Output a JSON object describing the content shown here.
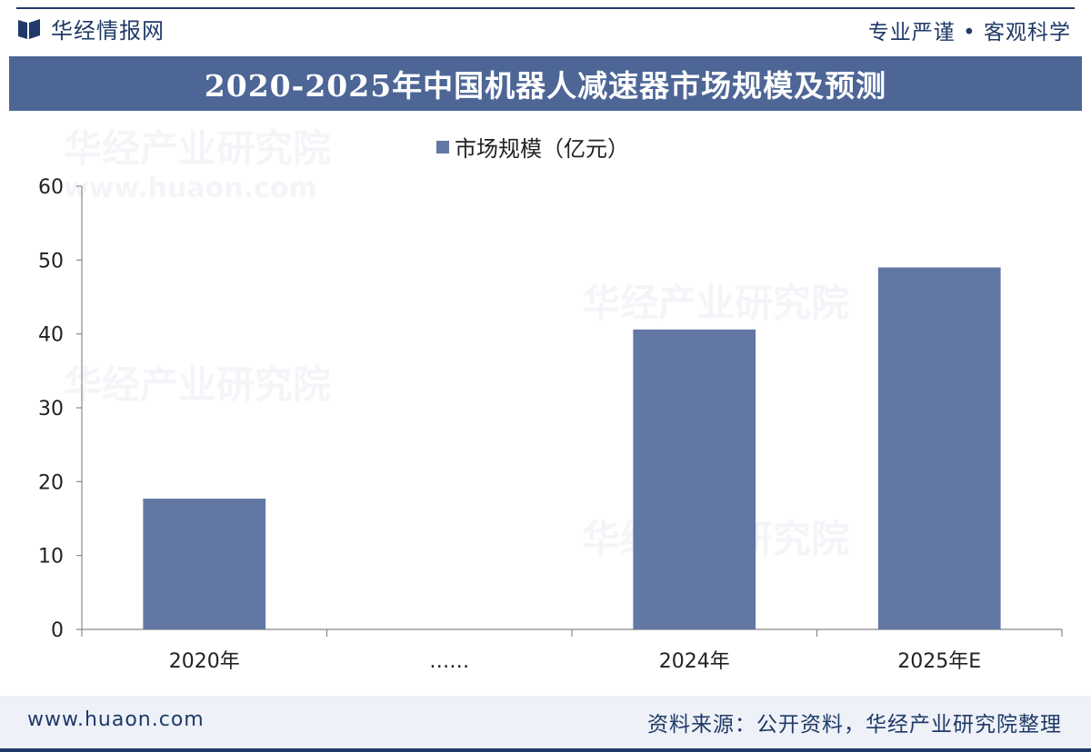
{
  "header": {
    "brand": "华经情报网",
    "slogan": "专业严谨 • 客观科学",
    "title": "2020-2025年中国机器人减速器市场规模及预测"
  },
  "footer": {
    "site": "www.huaon.com",
    "source": "资料来源：公开资料，华经产业研究院整理"
  },
  "watermark": {
    "text": "华经产业研究院",
    "url": "www.huaon.com"
  },
  "colors": {
    "bar": "#6277a4",
    "title_band": "#4d6696",
    "brand": "#1f3a68"
  },
  "chart_data": {
    "type": "bar",
    "categories": [
      "2020年",
      "……",
      "2024年",
      "2025年E"
    ],
    "series": [
      {
        "name": "市场规模（亿元）",
        "values": [
          17.7,
          null,
          40.6,
          49.0
        ]
      }
    ],
    "ylim": [
      0,
      60
    ],
    "yticks": [
      0,
      10,
      20,
      30,
      40,
      50,
      60
    ],
    "legend": "top-center",
    "grid": false
  }
}
